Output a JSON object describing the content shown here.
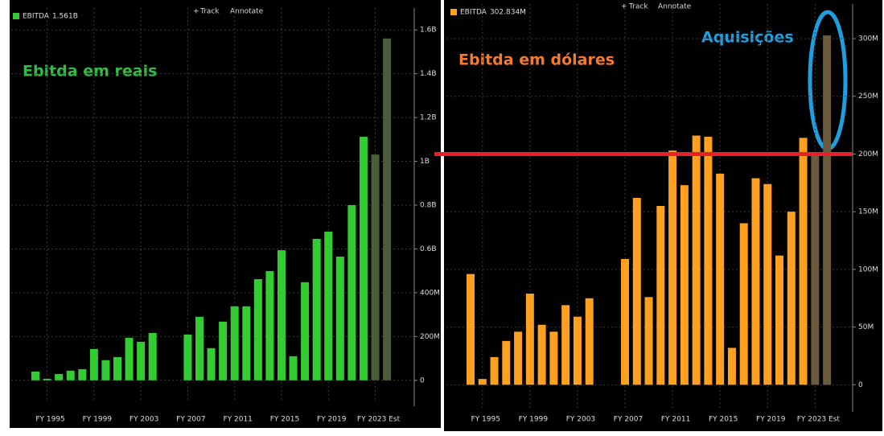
{
  "chart_data": [
    {
      "type": "bar",
      "toolbar": [
        "Track",
        "Annotate"
      ],
      "annotation": "Ebitda em reais",
      "categories": [
        null,
        "FY 1995",
        null,
        null,
        null,
        "FY 1999",
        null,
        null,
        null,
        "FY 2003",
        null,
        null,
        null,
        "FY 2007",
        null,
        null,
        null,
        "FY 2011",
        null,
        null,
        null,
        "FY 2015",
        null,
        null,
        null,
        "FY 2019",
        null,
        null,
        null,
        "FY 2023 Est",
        null
      ],
      "series": [
        {
          "name": "EBITDA",
          "legend_value": "1.561B",
          "color": "#33cc33",
          "colors": [
            "#33cc33",
            "#33cc33",
            "#33cc33",
            "#33cc33",
            "#33cc33",
            "#33cc33",
            "#33cc33",
            "#33cc33",
            "#33cc33",
            "#33cc33",
            "#33cc33",
            "#33cc33",
            "#33cc33",
            "#33cc33",
            "#33cc33",
            "#33cc33",
            "#33cc33",
            "#33cc33",
            "#33cc33",
            "#33cc33",
            "#33cc33",
            "#33cc33",
            "#33cc33",
            "#33cc33",
            "#33cc33",
            "#33cc33",
            "#33cc33",
            "#33cc33",
            "#33cc33",
            "#4a5e3c",
            "#4a5e3c"
          ],
          "values": [
            40,
            7,
            29,
            44,
            51,
            143,
            92,
            106,
            194,
            176,
            216,
            null,
            null,
            209,
            290,
            147,
            268,
            338,
            338,
            462,
            499,
            594,
            110,
            448,
            646,
            679,
            565,
            800,
            1112,
            1031,
            1561
          ]
        }
      ],
      "ylim": [
        -100,
        1700
      ],
      "yticks": [
        {
          "value": 0,
          "label": "0"
        },
        {
          "value": 200,
          "label": "200M"
        },
        {
          "value": 400,
          "label": "400M"
        },
        {
          "value": 600,
          "label": "0.6B"
        },
        {
          "value": 800,
          "label": "0.8B"
        },
        {
          "value": 1000,
          "label": "1B"
        },
        {
          "value": 1200,
          "label": "1.2B"
        },
        {
          "value": 1400,
          "label": "1.4B"
        },
        {
          "value": 1600,
          "label": "1.6B"
        }
      ],
      "grid": true
    },
    {
      "type": "bar",
      "toolbar": [
        "Track",
        "Annotate"
      ],
      "annotation": "Ebitda em dólares",
      "annotation2": "Aquisições",
      "categories": [
        null,
        "FY 1995",
        null,
        null,
        null,
        "FY 1999",
        null,
        null,
        null,
        "FY 2003",
        null,
        null,
        null,
        "FY 2007",
        null,
        null,
        null,
        "FY 2011",
        null,
        null,
        null,
        "FY 2015",
        null,
        null,
        null,
        "FY 2019",
        null,
        null,
        null,
        "FY 2023 Est",
        null
      ],
      "series": [
        {
          "name": "EBITDA",
          "legend_value": "302.834M",
          "color": "#ffa020",
          "colors": [
            "#ffa020",
            "#ffa020",
            "#ffa020",
            "#ffa020",
            "#ffa020",
            "#ffa020",
            "#ffa020",
            "#ffa020",
            "#ffa020",
            "#ffa020",
            "#ffa020",
            "#ffa020",
            "#ffa020",
            "#ffa020",
            "#ffa020",
            "#ffa020",
            "#ffa020",
            "#ffa020",
            "#ffa020",
            "#ffa020",
            "#ffa020",
            "#ffa020",
            "#ffa020",
            "#ffa020",
            "#ffa020",
            "#ffa020",
            "#ffa020",
            "#ffa020",
            "#ffa020",
            "#6b5a3c",
            "#6b5a3c"
          ],
          "values": [
            96,
            5,
            24,
            38,
            46,
            79,
            52,
            46,
            69,
            59,
            75,
            null,
            null,
            109,
            162,
            76,
            155,
            203,
            173,
            216,
            215,
            183,
            32,
            140,
            179,
            174,
            112,
            150,
            214,
            201,
            302.834
          ]
        }
      ],
      "ylim": [
        -20,
        330
      ],
      "yticks": [
        {
          "value": 0,
          "label": "0"
        },
        {
          "value": 50,
          "label": "50M"
        },
        {
          "value": 100,
          "label": "100M"
        },
        {
          "value": 150,
          "label": "150M"
        },
        {
          "value": 200,
          "label": "200M"
        },
        {
          "value": 250,
          "label": "250M"
        },
        {
          "value": 300,
          "label": "300M"
        }
      ],
      "grid": true,
      "reference_line": 200
    }
  ]
}
